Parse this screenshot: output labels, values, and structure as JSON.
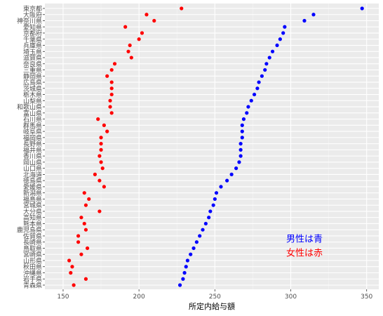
{
  "chart_data": {
    "type": "scatter",
    "xlabel": "所定内給与額",
    "ylabel": "",
    "xlim": [
      138,
      358
    ],
    "x_ticks": [
      150,
      200,
      250,
      300,
      350
    ],
    "grid": true,
    "categories": [
      "東京都",
      "大阪府",
      "神奈川県",
      "愛知県",
      "京都府",
      "千葉県",
      "兵庫県",
      "埼玉県",
      "滋賀県",
      "奈良県",
      "三重県",
      "静岡県",
      "広島県",
      "茨城県",
      "栃木県",
      "山梨県",
      "和歌山県",
      "富山県",
      "石川県",
      "群馬県",
      "岐阜県",
      "福岡県",
      "長野県",
      "福井県",
      "香川県",
      "岡山県",
      "山口県",
      "北海道",
      "徳島県",
      "愛媛県",
      "新潟県",
      "福島県",
      "宮城県",
      "大分県",
      "高知県",
      "熊本県",
      "鹿児島県",
      "佐賀県",
      "長崎県",
      "鳥取県",
      "宮崎県",
      "山形県",
      "秋田県",
      "沖縄県",
      "岩手県",
      "青森県"
    ],
    "series": [
      {
        "name": "男性",
        "color": "#0000ff",
        "values": [
          347,
          315,
          309,
          296,
          295,
          293,
          291,
          288,
          286,
          284,
          283,
          281,
          279,
          278,
          276,
          274,
          272,
          271,
          269,
          268,
          268,
          268,
          267,
          267,
          267,
          266,
          264,
          261,
          258,
          254,
          251,
          250,
          249,
          247,
          246,
          244,
          242,
          240,
          238,
          236,
          234,
          232,
          231,
          230,
          229,
          227
        ]
      },
      {
        "name": "女性",
        "color": "#ff0000",
        "values": [
          228,
          205,
          210,
          191,
          202,
          200,
          194,
          193,
          195,
          184,
          182,
          179,
          182,
          182,
          182,
          181,
          181,
          182,
          173,
          177,
          179,
          175,
          175,
          175,
          174,
          175,
          176,
          171,
          174,
          177,
          164,
          167,
          165,
          174,
          162,
          164,
          165,
          160,
          160,
          166,
          162,
          154,
          156,
          155,
          165,
          157
        ]
      }
    ],
    "annotations": [
      {
        "text": "男性は青",
        "color": "#0000ff",
        "x": 297,
        "category_index": 37.5
      },
      {
        "text": "女性は赤",
        "color": "#ff0000",
        "x": 297,
        "category_index": 39.8
      }
    ]
  }
}
